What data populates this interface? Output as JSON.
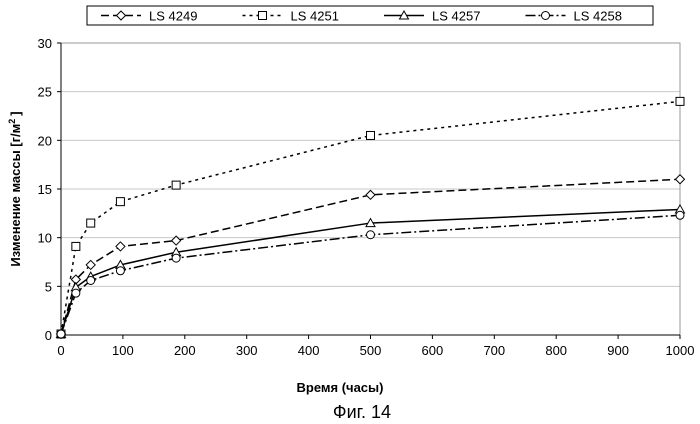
{
  "chart_data": {
    "type": "line",
    "xlabel": "Время (часы)",
    "ylabel": "Изменение массы [г/м",
    "ylabel_sup": "2",
    "ylabel_end": "]",
    "xlim": [
      0,
      1000
    ],
    "ylim": [
      0,
      30
    ],
    "xticks": [
      0,
      100,
      200,
      300,
      400,
      500,
      600,
      700,
      800,
      900,
      1000
    ],
    "yticks": [
      0,
      5,
      10,
      15,
      20,
      25,
      30
    ],
    "grid": true,
    "legend_position": "top",
    "series": [
      {
        "name": "LS 4249",
        "marker": "diamond",
        "dash": "8,4",
        "x": [
          0,
          24,
          48,
          96,
          186,
          500,
          1000
        ],
        "y": [
          0.1,
          5.7,
          7.2,
          9.1,
          9.7,
          14.4,
          16.0
        ]
      },
      {
        "name": "LS 4251",
        "marker": "square",
        "dash": "3,4",
        "x": [
          0,
          24,
          48,
          96,
          186,
          500,
          1000
        ],
        "y": [
          0.1,
          9.1,
          11.5,
          13.7,
          15.4,
          20.5,
          24.0
        ]
      },
      {
        "name": "LS 4257",
        "marker": "triangle",
        "dash": "",
        "x": [
          0,
          24,
          48,
          96,
          186,
          500,
          1000
        ],
        "y": [
          0.1,
          4.9,
          6.0,
          7.2,
          8.5,
          11.5,
          12.9
        ]
      },
      {
        "name": "LS 4258",
        "marker": "circle",
        "dash": "10,3,2,3",
        "x": [
          0,
          24,
          48,
          96,
          186,
          500,
          1000
        ],
        "y": [
          0.1,
          4.3,
          5.6,
          6.6,
          7.9,
          10.3,
          12.3
        ]
      }
    ]
  },
  "caption": "Фиг. 14"
}
